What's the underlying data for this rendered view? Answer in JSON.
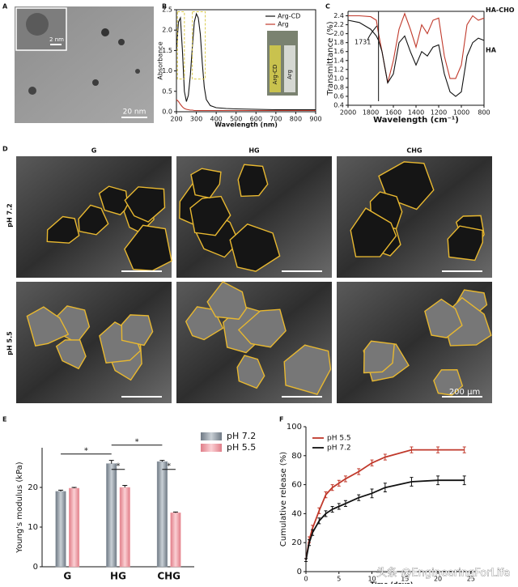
{
  "panels": {
    "letters": [
      "A",
      "B",
      "C",
      "D",
      "E",
      "F"
    ],
    "A": {
      "scale_main": "20 nm",
      "scale_inset": "2 nm"
    },
    "D": {
      "columns": [
        "G",
        "HG",
        "CHG"
      ],
      "rows": [
        "pH 7.2",
        "pH 5.5"
      ],
      "scale": "200 µm"
    }
  },
  "watermark": "头条 @EngineeringForLife",
  "chart_data": [
    {
      "type": "line",
      "xlabel": "Wavelength (nm)",
      "ylabel": "Absorbance",
      "legend": "upper right",
      "inset_labels": [
        "Arg-CD",
        "Arg"
      ],
      "x": [
        200,
        210,
        220,
        230,
        240,
        250,
        260,
        270,
        280,
        290,
        300,
        310,
        320,
        330,
        340,
        350,
        370,
        400,
        450,
        500,
        600,
        700,
        800,
        900
      ],
      "series": [
        {
          "name": "Arg-CD",
          "color": "#111111",
          "values": [
            1.5,
            2.2,
            2.3,
            1.5,
            0.5,
            0.25,
            0.4,
            0.9,
            1.6,
            2.2,
            2.4,
            2.3,
            1.9,
            1.2,
            0.6,
            0.3,
            0.15,
            0.1,
            0.08,
            0.07,
            0.06,
            0.05,
            0.05,
            0.05
          ]
        },
        {
          "name": "Arg",
          "color": "#c0392b",
          "values": [
            0.3,
            0.25,
            0.18,
            0.12,
            0.08,
            0.06,
            0.05,
            0.04,
            0.04,
            0.03,
            0.03,
            0.03,
            0.03,
            0.03,
            0.03,
            0.03,
            0.03,
            0.03,
            0.03,
            0.03,
            0.03,
            0.03,
            0.03,
            0.03
          ]
        }
      ],
      "xlim": [
        200,
        900
      ],
      "xticks": [
        200,
        300,
        400,
        500,
        600,
        700,
        800,
        900
      ],
      "ylim": [
        0,
        2.5
      ],
      "yticks": [
        {
          "value": 0,
          "label": "0.0"
        },
        0.5,
        {
          "value": 1,
          "label": "1.0"
        },
        1.5,
        {
          "value": 2,
          "label": "2.0"
        },
        2.5
      ]
    },
    {
      "type": "line",
      "xlabel": "Wavelength (cm⁻¹)",
      "ylabel": "Transmittance (%)",
      "legend": "line-end",
      "annotation": {
        "text": "1731",
        "x": 1731
      },
      "x": [
        2000,
        1900,
        1800,
        1750,
        1731,
        1700,
        1650,
        1600,
        1550,
        1500,
        1450,
        1400,
        1350,
        1300,
        1250,
        1200,
        1150,
        1100,
        1050,
        1000,
        950,
        900,
        850,
        800
      ],
      "series": [
        {
          "name": "HA-CHO",
          "color": "#c0392b",
          "values": [
            2.4,
            2.4,
            2.38,
            2.3,
            2.0,
            1.6,
            0.9,
            1.4,
            2.1,
            2.45,
            2.1,
            1.7,
            2.2,
            2.0,
            2.3,
            2.35,
            1.5,
            1.0,
            1.0,
            1.3,
            2.2,
            2.4,
            2.3,
            2.35
          ]
        },
        {
          "name": "HA",
          "color": "#111111",
          "values": [
            2.3,
            2.25,
            2.1,
            1.95,
            1.85,
            1.6,
            0.9,
            1.1,
            1.8,
            1.95,
            1.6,
            1.3,
            1.6,
            1.5,
            1.7,
            1.75,
            1.1,
            0.7,
            0.6,
            0.7,
            1.5,
            1.8,
            1.9,
            1.85
          ]
        }
      ],
      "xlim": [
        2000,
        800
      ],
      "xticks": [
        2000,
        1800,
        1600,
        1400,
        1200,
        1000,
        800
      ],
      "ylim": [
        0.4,
        2.5
      ],
      "yticks": [
        0.4,
        0.6,
        0.8,
        {
          "value": 1,
          "label": "1.0"
        },
        1.2,
        1.4,
        1.6,
        1.8,
        {
          "value": 2,
          "label": "2.0"
        },
        2.2,
        2.4
      ]
    },
    {
      "type": "bar",
      "ylabel": "Young's  modulus (kPa)",
      "legend": "upper right",
      "significance": [
        "*",
        "*",
        "*",
        "*"
      ],
      "categories": [
        "G",
        "HG",
        "CHG"
      ],
      "series": [
        {
          "name": "pH 7.2",
          "color": "#8e98a3",
          "values": [
            19,
            26,
            26.5
          ],
          "errors": [
            0.3,
            0.8,
            0.3
          ]
        },
        {
          "name": "pH 5.5",
          "color": "#f2a3aa",
          "values": [
            19.8,
            20,
            13.6
          ],
          "errors": [
            0.2,
            0.5,
            0.2
          ]
        }
      ],
      "ylim": [
        0,
        30
      ],
      "yticks": [
        0,
        10,
        20
      ]
    },
    {
      "type": "line",
      "xlabel": "Time (days)",
      "ylabel": "Cumulative release (%)",
      "legend": "upper left",
      "x": [
        0,
        0.5,
        1,
        2,
        3,
        4,
        5,
        6,
        8,
        10,
        12,
        16,
        20,
        24
      ],
      "series": [
        {
          "name": "pH 5.5",
          "color": "#c0392b",
          "values": [
            8,
            22,
            30,
            42,
            53,
            58,
            61,
            64,
            69,
            75,
            79,
            84,
            84,
            84
          ],
          "errors": [
            1,
            2,
            2,
            2,
            2,
            2,
            2,
            2,
            2,
            2,
            2,
            2,
            2,
            2
          ]
        },
        {
          "name": "pH 7.2",
          "color": "#111111",
          "values": [
            8,
            20,
            27,
            35,
            40,
            43,
            45,
            47,
            51,
            54,
            58,
            62,
            63,
            63
          ],
          "errors": [
            1,
            2,
            2,
            2,
            2,
            2,
            2,
            2,
            2,
            3,
            3,
            3,
            3,
            3
          ]
        }
      ],
      "xlim": [
        0,
        26
      ],
      "xticks": [
        0,
        5,
        10,
        15,
        20,
        25
      ],
      "ylim": [
        0,
        100
      ],
      "yticks": [
        0,
        20,
        40,
        60,
        80,
        100
      ]
    }
  ]
}
